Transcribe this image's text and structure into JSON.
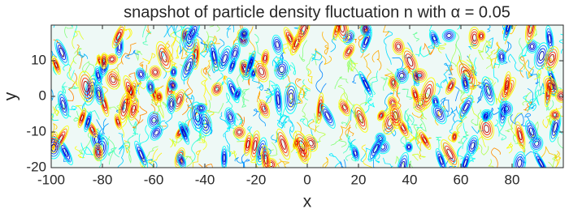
{
  "chart_data": {
    "type": "contour",
    "title": "snapshot of particle density fluctuation n with α = 0.05",
    "x_label": "x",
    "y_label": "y",
    "xlim": [
      -100,
      100
    ],
    "ylim": [
      -20,
      20
    ],
    "xticks": [
      -100,
      -80,
      -60,
      -40,
      -20,
      0,
      20,
      40,
      60,
      80
    ],
    "yticks": [
      -20,
      -10,
      0,
      10
    ],
    "colormap": "jet"
  }
}
